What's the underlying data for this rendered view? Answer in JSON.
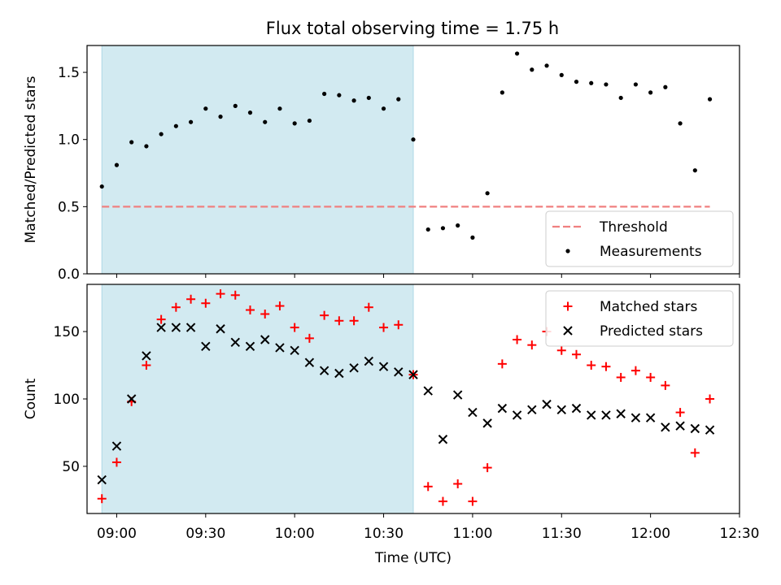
{
  "figure": {
    "title": "Flux total observing time = 1.75 h"
  },
  "chart_data": [
    {
      "type": "scatter",
      "panel": "top",
      "ylabel": "Matched/Predicted stars",
      "xlabel": "",
      "xlim": [
        "08:50",
        "12:30"
      ],
      "ylim": [
        0,
        1.7
      ],
      "yticks": [
        0.0,
        0.5,
        1.0,
        1.5
      ],
      "ytick_labels": [
        "0.0",
        "0.5",
        "1.0",
        "1.5"
      ],
      "shaded_region": {
        "from": "08:55",
        "to": "10:40",
        "color": "#add8e6"
      },
      "legend": {
        "placement": "lower-right",
        "entries": [
          "Threshold",
          "Measurements"
        ]
      },
      "series": [
        {
          "name": "Threshold",
          "style": "dashed-line",
          "color": "#f08080",
          "x": [
            "08:55",
            "12:20"
          ],
          "y": [
            0.5,
            0.5
          ]
        },
        {
          "name": "Measurements",
          "style": "dot",
          "color": "#000000",
          "x": [
            "08:55",
            "09:00",
            "09:05",
            "09:10",
            "09:15",
            "09:20",
            "09:25",
            "09:30",
            "09:35",
            "09:40",
            "09:45",
            "09:50",
            "09:55",
            "10:00",
            "10:05",
            "10:10",
            "10:15",
            "10:20",
            "10:25",
            "10:30",
            "10:35",
            "10:40",
            "10:45",
            "10:50",
            "10:55",
            "11:00",
            "11:05",
            "11:10",
            "11:15",
            "11:20",
            "11:25",
            "11:30",
            "11:35",
            "11:40",
            "11:45",
            "11:50",
            "11:55",
            "12:00",
            "12:05",
            "12:10",
            "12:15",
            "12:20"
          ],
          "y": [
            0.65,
            0.81,
            0.98,
            0.95,
            1.04,
            1.1,
            1.13,
            1.23,
            1.17,
            1.25,
            1.2,
            1.13,
            1.23,
            1.12,
            1.14,
            1.34,
            1.33,
            1.29,
            1.31,
            1.23,
            1.3,
            1.0,
            0.33,
            0.34,
            0.36,
            0.27,
            0.6,
            1.35,
            1.64,
            1.52,
            1.55,
            1.48,
            1.43,
            1.42,
            1.41,
            1.31,
            1.41,
            1.35,
            1.39,
            1.12,
            0.77,
            1.3
          ]
        }
      ]
    },
    {
      "type": "scatter",
      "panel": "bottom",
      "xlabel": "Time (UTC)",
      "ylabel": "Count",
      "xlim": [
        "08:50",
        "12:30"
      ],
      "ylim": [
        15,
        185
      ],
      "yticks": [
        50,
        100,
        150
      ],
      "ytick_labels": [
        "50",
        "100",
        "150"
      ],
      "xticks": [
        "09:00",
        "09:30",
        "10:00",
        "10:30",
        "11:00",
        "11:30",
        "12:00",
        "12:30"
      ],
      "xtick_labels": [
        "09:00",
        "09:30",
        "10:00",
        "10:30",
        "11:00",
        "11:30",
        "12:00",
        "12:30"
      ],
      "shaded_region": {
        "from": "08:55",
        "to": "10:40",
        "color": "#add8e6"
      },
      "legend": {
        "placement": "upper-right",
        "entries": [
          "Matched stars",
          "Predicted stars"
        ]
      },
      "series": [
        {
          "name": "Matched stars",
          "marker": "plus",
          "color": "#ff0000",
          "x": [
            "08:55",
            "09:00",
            "09:05",
            "09:10",
            "09:15",
            "09:20",
            "09:25",
            "09:30",
            "09:35",
            "09:40",
            "09:45",
            "09:50",
            "09:55",
            "10:00",
            "10:05",
            "10:10",
            "10:15",
            "10:20",
            "10:25",
            "10:30",
            "10:35",
            "10:40",
            "10:45",
            "10:50",
            "10:55",
            "11:00",
            "11:05",
            "11:10",
            "11:15",
            "11:20",
            "11:25",
            "11:30",
            "11:35",
            "11:40",
            "11:45",
            "11:50",
            "11:55",
            "12:00",
            "12:05",
            "12:10",
            "12:15",
            "12:20"
          ],
          "y": [
            26,
            53,
            98,
            125,
            159,
            168,
            174,
            171,
            178,
            177,
            166,
            163,
            169,
            153,
            145,
            162,
            158,
            158,
            168,
            153,
            155,
            118,
            35,
            24,
            37,
            24,
            49,
            126,
            144,
            140,
            150,
            136,
            133,
            125,
            124,
            116,
            121,
            116,
            110,
            90,
            60,
            100
          ]
        },
        {
          "name": "Predicted stars",
          "marker": "x",
          "color": "#000000",
          "x": [
            "08:55",
            "09:00",
            "09:05",
            "09:10",
            "09:15",
            "09:20",
            "09:25",
            "09:30",
            "09:35",
            "09:40",
            "09:45",
            "09:50",
            "09:55",
            "10:00",
            "10:05",
            "10:10",
            "10:15",
            "10:20",
            "10:25",
            "10:30",
            "10:35",
            "10:40",
            "10:45",
            "10:50",
            "10:55",
            "11:00",
            "11:05",
            "11:10",
            "11:15",
            "11:20",
            "11:25",
            "11:30",
            "11:35",
            "11:40",
            "11:45",
            "11:50",
            "11:55",
            "12:00",
            "12:05",
            "12:10",
            "12:15",
            "12:20"
          ],
          "y": [
            40,
            65,
            100,
            132,
            153,
            153,
            153,
            139,
            152,
            142,
            139,
            144,
            138,
            136,
            127,
            121,
            119,
            123,
            128,
            124,
            120,
            118,
            106,
            70,
            103,
            90,
            82,
            93,
            88,
            92,
            96,
            92,
            93,
            88,
            88,
            89,
            86,
            86,
            79,
            80,
            78,
            77
          ]
        }
      ]
    }
  ]
}
